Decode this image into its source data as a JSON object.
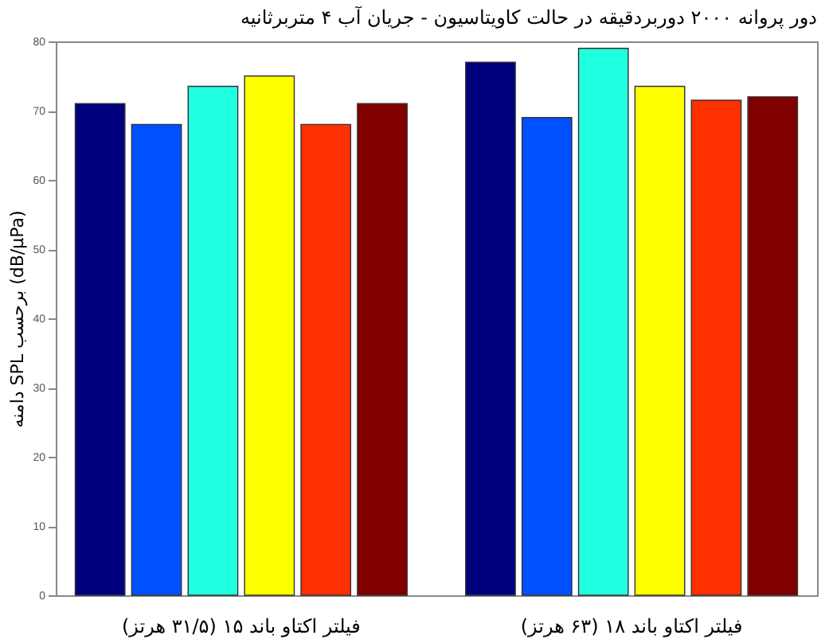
{
  "chart_data": {
    "type": "bar",
    "title": "دور پروانه ۲۰۰۰ دوربردقیقه در حالت کاویتاسیون - جریان آب ۴ متربرثانیه",
    "ylabel": "دامنه SPL برحسب (dB/µPa)",
    "categories": [
      "فیلتر اکتاو باند ۱۵ (۳۱/۵ هرتز)",
      "فیلتر اکتاو باند ۱۸ (۶۳ هرتز)"
    ],
    "series": [
      {
        "color": "#00007f",
        "values": [
          71,
          77
        ]
      },
      {
        "color": "#0050ff",
        "values": [
          68,
          69
        ]
      },
      {
        "color": "#20ffdf",
        "values": [
          73.5,
          79
        ]
      },
      {
        "color": "#ffff00",
        "values": [
          75,
          73.5
        ]
      },
      {
        "color": "#ff3000",
        "values": [
          68,
          71.5
        ]
      },
      {
        "color": "#800000",
        "values": [
          71,
          72
        ]
      }
    ],
    "ylim": [
      0,
      80
    ],
    "yticks": [
      0,
      10,
      20,
      30,
      40,
      50,
      60,
      70,
      80
    ],
    "grid": false,
    "legend": false
  }
}
